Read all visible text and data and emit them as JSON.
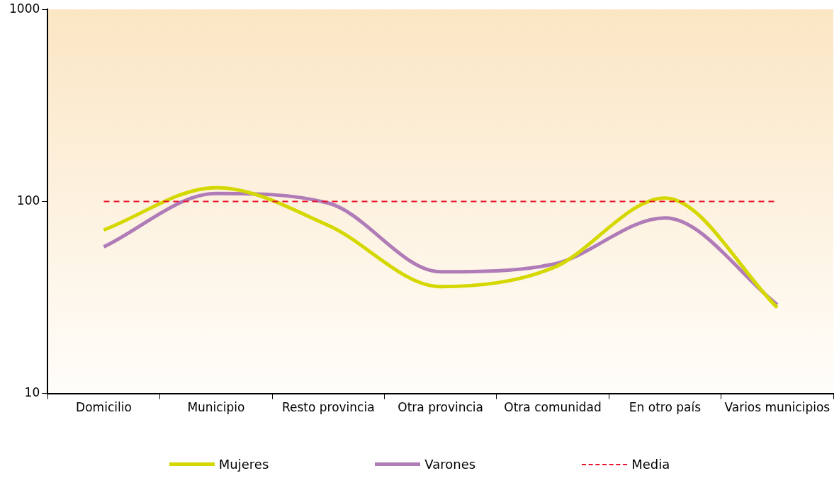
{
  "chart_data": {
    "type": "line",
    "categories": [
      "Domicilio",
      "Municipio",
      "Resto provincia",
      "Otra provincia",
      "Otra comunidad",
      "En otro país",
      "Varios municipios"
    ],
    "series": [
      {
        "name": "Mujeres",
        "color": "#d4d800",
        "values": [
          71,
          118,
          75,
          36,
          45,
          104,
          28
        ]
      },
      {
        "name": "Varones",
        "color": "#b07cb8",
        "values": [
          58,
          110,
          98,
          43,
          47,
          82,
          29
        ]
      }
    ],
    "ref_lines": [
      {
        "axis": "y",
        "value": 100,
        "label": "Media",
        "color": "#e8102a",
        "line_style": "dashed"
      }
    ],
    "log": true,
    "ylim": [
      10,
      1000
    ],
    "yticks": [
      10,
      100,
      1000
    ],
    "grid": false,
    "legend": "bottom",
    "marker": "none",
    "line_style": "solid"
  }
}
